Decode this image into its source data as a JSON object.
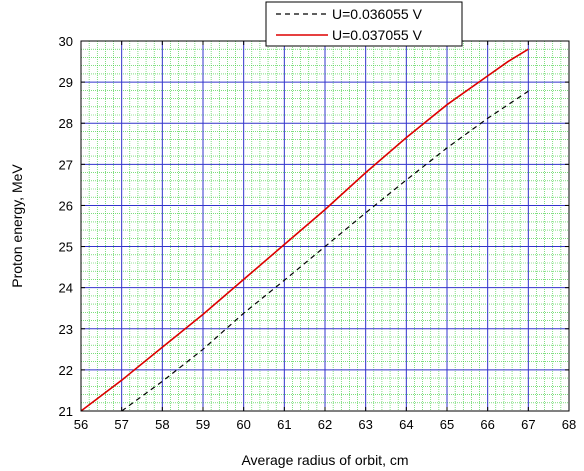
{
  "chart_data": {
    "type": "line",
    "xlabel": "Average radius of orbit, cm",
    "ylabel": "Proton energy, MeV",
    "xlim": [
      56,
      68
    ],
    "ylim": [
      21,
      30
    ],
    "x_ticks": [
      "56",
      "57",
      "58",
      "59",
      "60",
      "61",
      "62",
      "63",
      "64",
      "65",
      "66",
      "67",
      "68"
    ],
    "y_ticks": [
      "21",
      "22",
      "23",
      "24",
      "25",
      "26",
      "27",
      "28",
      "29",
      "30"
    ],
    "grid": {
      "major": true,
      "minor": true,
      "major_color": "#3333cc",
      "minor_color": "#33cc33"
    },
    "legend_position": "top-right",
    "series": [
      {
        "name": "U=0.036055 V",
        "color": "#000000",
        "style": "dashed",
        "x": [
          57.0,
          58.0,
          59.0,
          60.0,
          61.0,
          62.0,
          63.0,
          64.0,
          65.0,
          66.0,
          67.0
        ],
        "y": [
          21.0,
          21.72,
          22.5,
          23.38,
          24.18,
          25.0,
          25.82,
          26.62,
          27.4,
          28.12,
          28.78
        ]
      },
      {
        "name": "U=0.037055 V",
        "color": "#dd0000",
        "style": "solid",
        "x": [
          56.0,
          57.0,
          58.0,
          59.0,
          60.0,
          61.0,
          62.0,
          63.0,
          64.0,
          65.0,
          66.0,
          66.5,
          67.0
        ],
        "y": [
          21.0,
          21.75,
          22.55,
          23.35,
          24.2,
          25.05,
          25.9,
          26.8,
          27.65,
          28.45,
          29.15,
          29.5,
          29.8
        ]
      }
    ]
  }
}
